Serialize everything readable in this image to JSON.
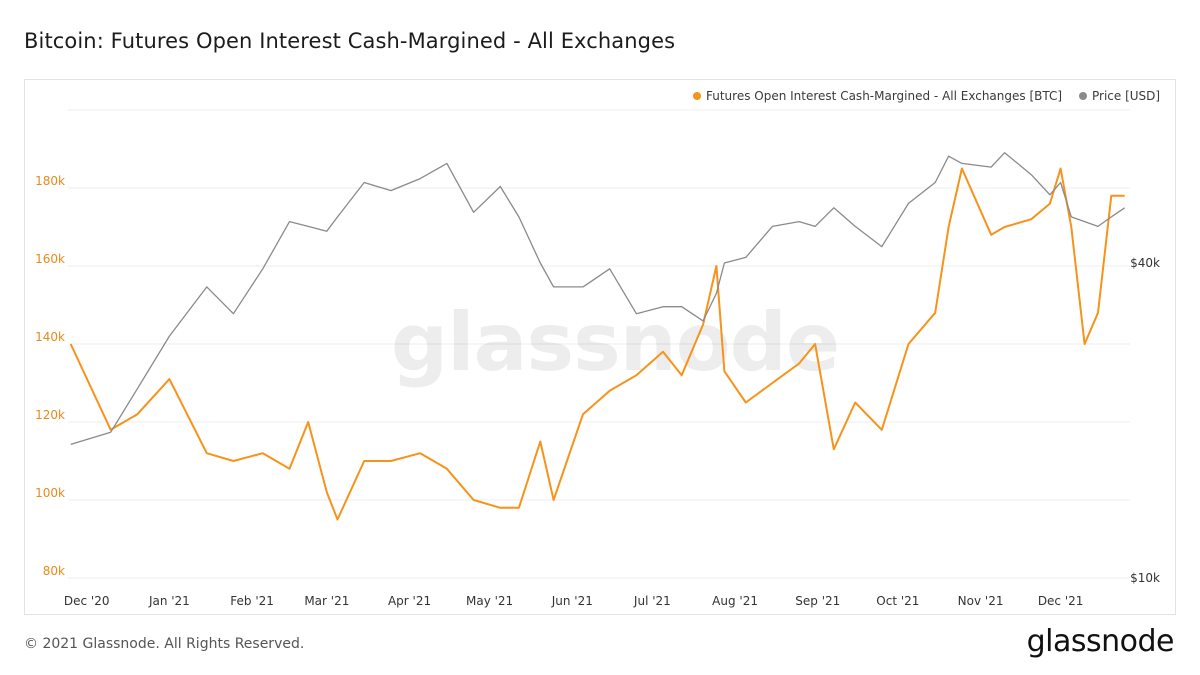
{
  "title": "Bitcoin: Futures Open Interest Cash-Margined - All Exchanges",
  "footer": {
    "copyright": "© 2021 Glassnode. All Rights Reserved.",
    "logo": "glassnode"
  },
  "watermark": "glassnode",
  "colors": {
    "oi_series": "#f7931a",
    "price_series": "#8a8a8a",
    "grid": "#ececec"
  },
  "chart_data": {
    "type": "line",
    "title": "Bitcoin: Futures Open Interest Cash-Margined - All Exchanges",
    "legend_position": "top-right",
    "grid": true,
    "y_left": {
      "ticks": [
        80000,
        100000,
        120000,
        140000,
        160000,
        180000
      ],
      "tick_labels": [
        "80k",
        "100k",
        "120k",
        "140k",
        "160k",
        "180k"
      ],
      "range": [
        80000,
        200000
      ]
    },
    "y_right": {
      "scale": "log",
      "ticks": [
        10000,
        40000
      ],
      "tick_labels": [
        "$10k",
        "$40k"
      ]
    },
    "x_labels": [
      "Dec '20",
      "Jan '21",
      "Feb '21",
      "Mar '21",
      "Apr '21",
      "May '21",
      "Jun '21",
      "Jul '21",
      "Aug '21",
      "Sep '21",
      "Oct '21",
      "Nov '21",
      "Dec '21"
    ],
    "x_dates": [
      "2020-11-25",
      "2020-12-10",
      "2020-12-20",
      "2021-01-01",
      "2021-01-15",
      "2021-01-25",
      "2021-02-05",
      "2021-02-15",
      "2021-02-22",
      "2021-03-01",
      "2021-03-05",
      "2021-03-15",
      "2021-03-25",
      "2021-04-05",
      "2021-04-15",
      "2021-04-25",
      "2021-05-05",
      "2021-05-12",
      "2021-05-20",
      "2021-05-25",
      "2021-06-05",
      "2021-06-15",
      "2021-06-25",
      "2021-07-05",
      "2021-07-12",
      "2021-07-20",
      "2021-07-25",
      "2021-07-28",
      "2021-08-05",
      "2021-08-15",
      "2021-08-25",
      "2021-08-31",
      "2021-09-07",
      "2021-09-15",
      "2021-09-25",
      "2021-10-05",
      "2021-10-15",
      "2021-10-20",
      "2021-10-25",
      "2021-11-05",
      "2021-11-10",
      "2021-11-20",
      "2021-11-27",
      "2021-12-01",
      "2021-12-05",
      "2021-12-10",
      "2021-12-15",
      "2021-12-20",
      "2021-12-25"
    ],
    "series": [
      {
        "name": "Futures Open Interest Cash-Margined - All Exchanges [BTC]",
        "axis": "left",
        "values": [
          140000,
          118000,
          122000,
          131000,
          112000,
          110000,
          112000,
          108000,
          120000,
          102000,
          95000,
          110000,
          110000,
          112000,
          108000,
          100000,
          98000,
          98000,
          115000,
          100000,
          122000,
          128000,
          132000,
          138000,
          132000,
          145000,
          160000,
          133000,
          125000,
          130000,
          135000,
          140000,
          113000,
          125000,
          118000,
          140000,
          148000,
          170000,
          185000,
          168000,
          170000,
          172000,
          176000,
          185000,
          170000,
          140000,
          148000,
          178000,
          178000
        ]
      },
      {
        "name": "Price [USD]",
        "axis": "right",
        "values": [
          18000,
          19000,
          23000,
          29000,
          36000,
          32000,
          39000,
          48000,
          47000,
          46000,
          49000,
          57000,
          55000,
          58000,
          62000,
          50000,
          56000,
          49000,
          40000,
          36000,
          36000,
          39000,
          32000,
          33000,
          33000,
          31000,
          35000,
          40000,
          41000,
          47000,
          48000,
          47000,
          51000,
          47000,
          43000,
          52000,
          57000,
          64000,
          62000,
          61000,
          65000,
          59000,
          54000,
          57000,
          49000,
          48000,
          47000,
          49000,
          51000
        ]
      }
    ]
  }
}
